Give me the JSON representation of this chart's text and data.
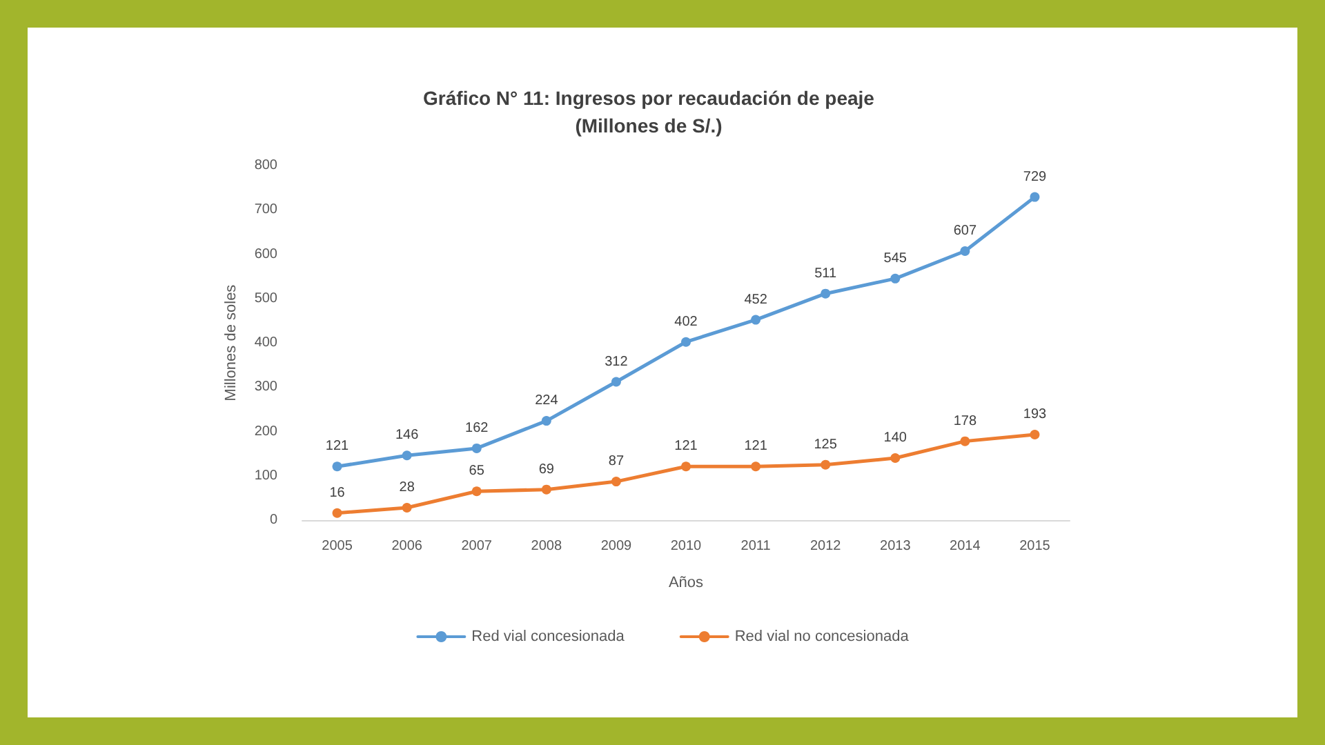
{
  "chart_data": {
    "type": "line",
    "title": "Gráfico N° 11: Ingresos por recaudación de peaje\n(Millones de S/.)",
    "xlabel": "Años",
    "ylabel": "Millones de soles",
    "categories": [
      "2005",
      "2006",
      "2007",
      "2008",
      "2009",
      "2010",
      "2011",
      "2012",
      "2013",
      "2014",
      "2015"
    ],
    "series": [
      {
        "name": "Red vial concesionada",
        "color": "#5b9bd5",
        "values": [
          121,
          146,
          162,
          224,
          312,
          402,
          452,
          511,
          545,
          607,
          729
        ]
      },
      {
        "name": "Red vial no concesionada",
        "color": "#ed7d31",
        "values": [
          16,
          28,
          65,
          69,
          87,
          121,
          121,
          125,
          140,
          178,
          193
        ]
      }
    ],
    "ylim": [
      0,
      800
    ],
    "yticks": [
      0,
      100,
      200,
      300,
      400,
      500,
      600,
      700,
      800
    ],
    "grid": false,
    "legend": "bottom",
    "marker": "circle",
    "line_style": "solid",
    "data_labels": true
  }
}
